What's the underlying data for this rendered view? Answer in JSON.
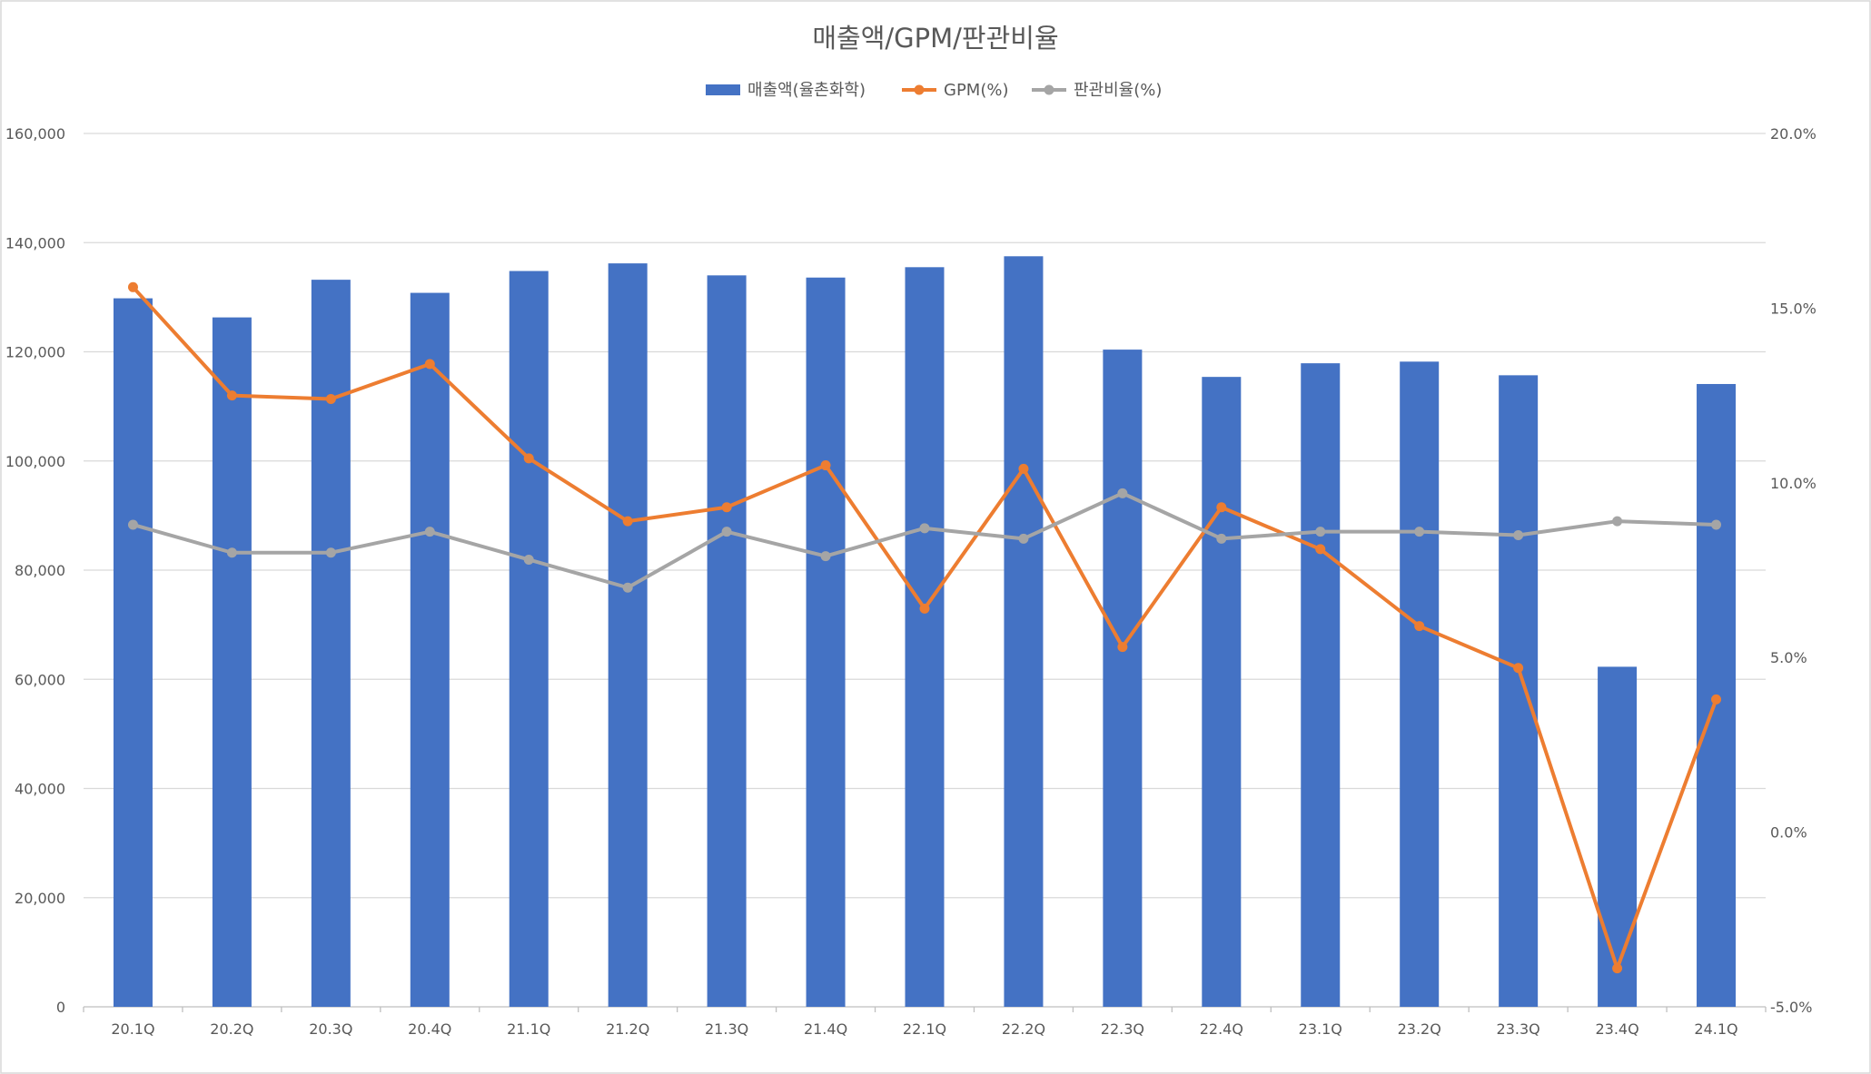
{
  "chart_data": {
    "type": "bar",
    "title": "매출액/GPM/판관비율",
    "categories": [
      "20.1Q",
      "20.2Q",
      "20.3Q",
      "20.4Q",
      "21.1Q",
      "21.2Q",
      "21.3Q",
      "21.4Q",
      "22.1Q",
      "22.2Q",
      "22.3Q",
      "22.4Q",
      "23.1Q",
      "23.2Q",
      "23.3Q",
      "23.4Q",
      "24.1Q"
    ],
    "y_left": {
      "ylim": [
        0,
        160000
      ],
      "ticks": [
        0,
        20000,
        40000,
        60000,
        80000,
        100000,
        120000,
        140000,
        160000
      ],
      "tick_labels": [
        "0",
        "20,000",
        "40,000",
        "60,000",
        "80,000",
        "100,000",
        "120,000",
        "140,000",
        "160,000"
      ]
    },
    "y_right": {
      "ylim": [
        -5,
        20
      ],
      "ticks": [
        -5,
        0,
        5,
        10,
        15,
        20
      ],
      "tick_labels": [
        "-5.0%",
        "0.0%",
        "5.0%",
        "10.0%",
        "15.0%",
        "20.0%"
      ]
    },
    "series": [
      {
        "name": "매출액(율촌화학)",
        "type": "bar",
        "axis": "left",
        "color": "#4472c4",
        "values": [
          129800,
          126300,
          133200,
          130800,
          134800,
          136200,
          134000,
          133600,
          135500,
          137500,
          120400,
          115400,
          117900,
          118200,
          115700,
          62300,
          114100
        ]
      },
      {
        "name": "GPM(%)",
        "type": "line",
        "axis": "right",
        "color": "#ed7d31",
        "values": [
          15.6,
          12.5,
          12.4,
          13.4,
          10.7,
          8.9,
          9.3,
          10.5,
          6.4,
          10.4,
          5.3,
          9.3,
          8.1,
          5.9,
          4.7,
          -3.9,
          3.8
        ]
      },
      {
        "name": "판관비율(%)",
        "type": "line",
        "axis": "right",
        "color": "#a5a5a5",
        "values": [
          8.8,
          8.0,
          8.0,
          8.6,
          7.8,
          7.0,
          8.6,
          7.9,
          8.7,
          8.4,
          9.7,
          8.4,
          8.6,
          8.6,
          8.5,
          8.9,
          8.8
        ]
      }
    ],
    "grid": true,
    "legend_position": "top-center"
  }
}
